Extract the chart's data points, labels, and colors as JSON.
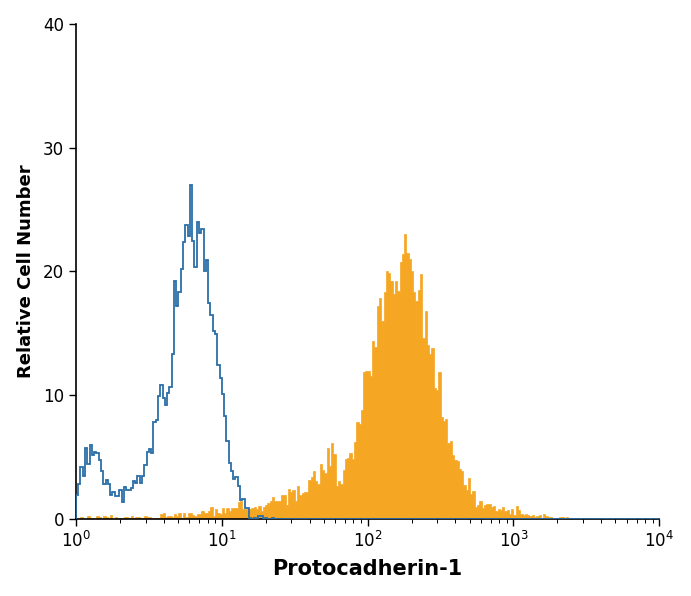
{
  "title": "",
  "xlabel": "Protocadherin-1",
  "ylabel": "Relative Cell Number",
  "xlim_log": [
    1,
    10000
  ],
  "ylim": [
    0,
    40
  ],
  "yticks": [
    0,
    10,
    20,
    30,
    40
  ],
  "background_color": "#ffffff",
  "orange_color": "#F5A623",
  "blue_color": "#2B6EA8",
  "xlabel_fontsize": 15,
  "ylabel_fontsize": 13,
  "tick_fontsize": 12
}
